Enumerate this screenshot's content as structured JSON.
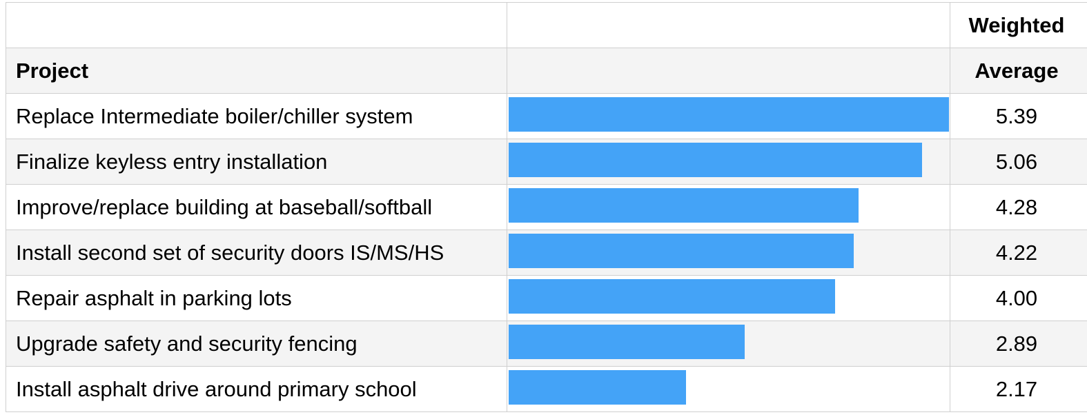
{
  "chart_data": {
    "type": "bar",
    "orientation": "horizontal",
    "header": {
      "project": "Project",
      "value_line1": "Weighted",
      "value_line2": "Average"
    },
    "categories": [
      "Replace Intermediate boiler/chiller system",
      "Finalize keyless entry installation",
      "Improve/replace building at baseball/softball",
      "Install second set of security doors IS/MS/HS",
      "Repair asphalt in parking lots",
      "Upgrade safety and security fencing",
      "Install asphalt drive around primary school"
    ],
    "values": [
      5.39,
      5.06,
      4.28,
      4.22,
      4.0,
      2.89,
      2.17
    ],
    "value_labels": [
      "5.39",
      "5.06",
      "4.28",
      "4.22",
      "4.00",
      "2.89",
      "2.17"
    ],
    "xlim": [
      0,
      5.39
    ],
    "bar_color": "#44a3f7",
    "row_stripe_color": "#f4f4f4",
    "grid": true,
    "legend": "none"
  }
}
